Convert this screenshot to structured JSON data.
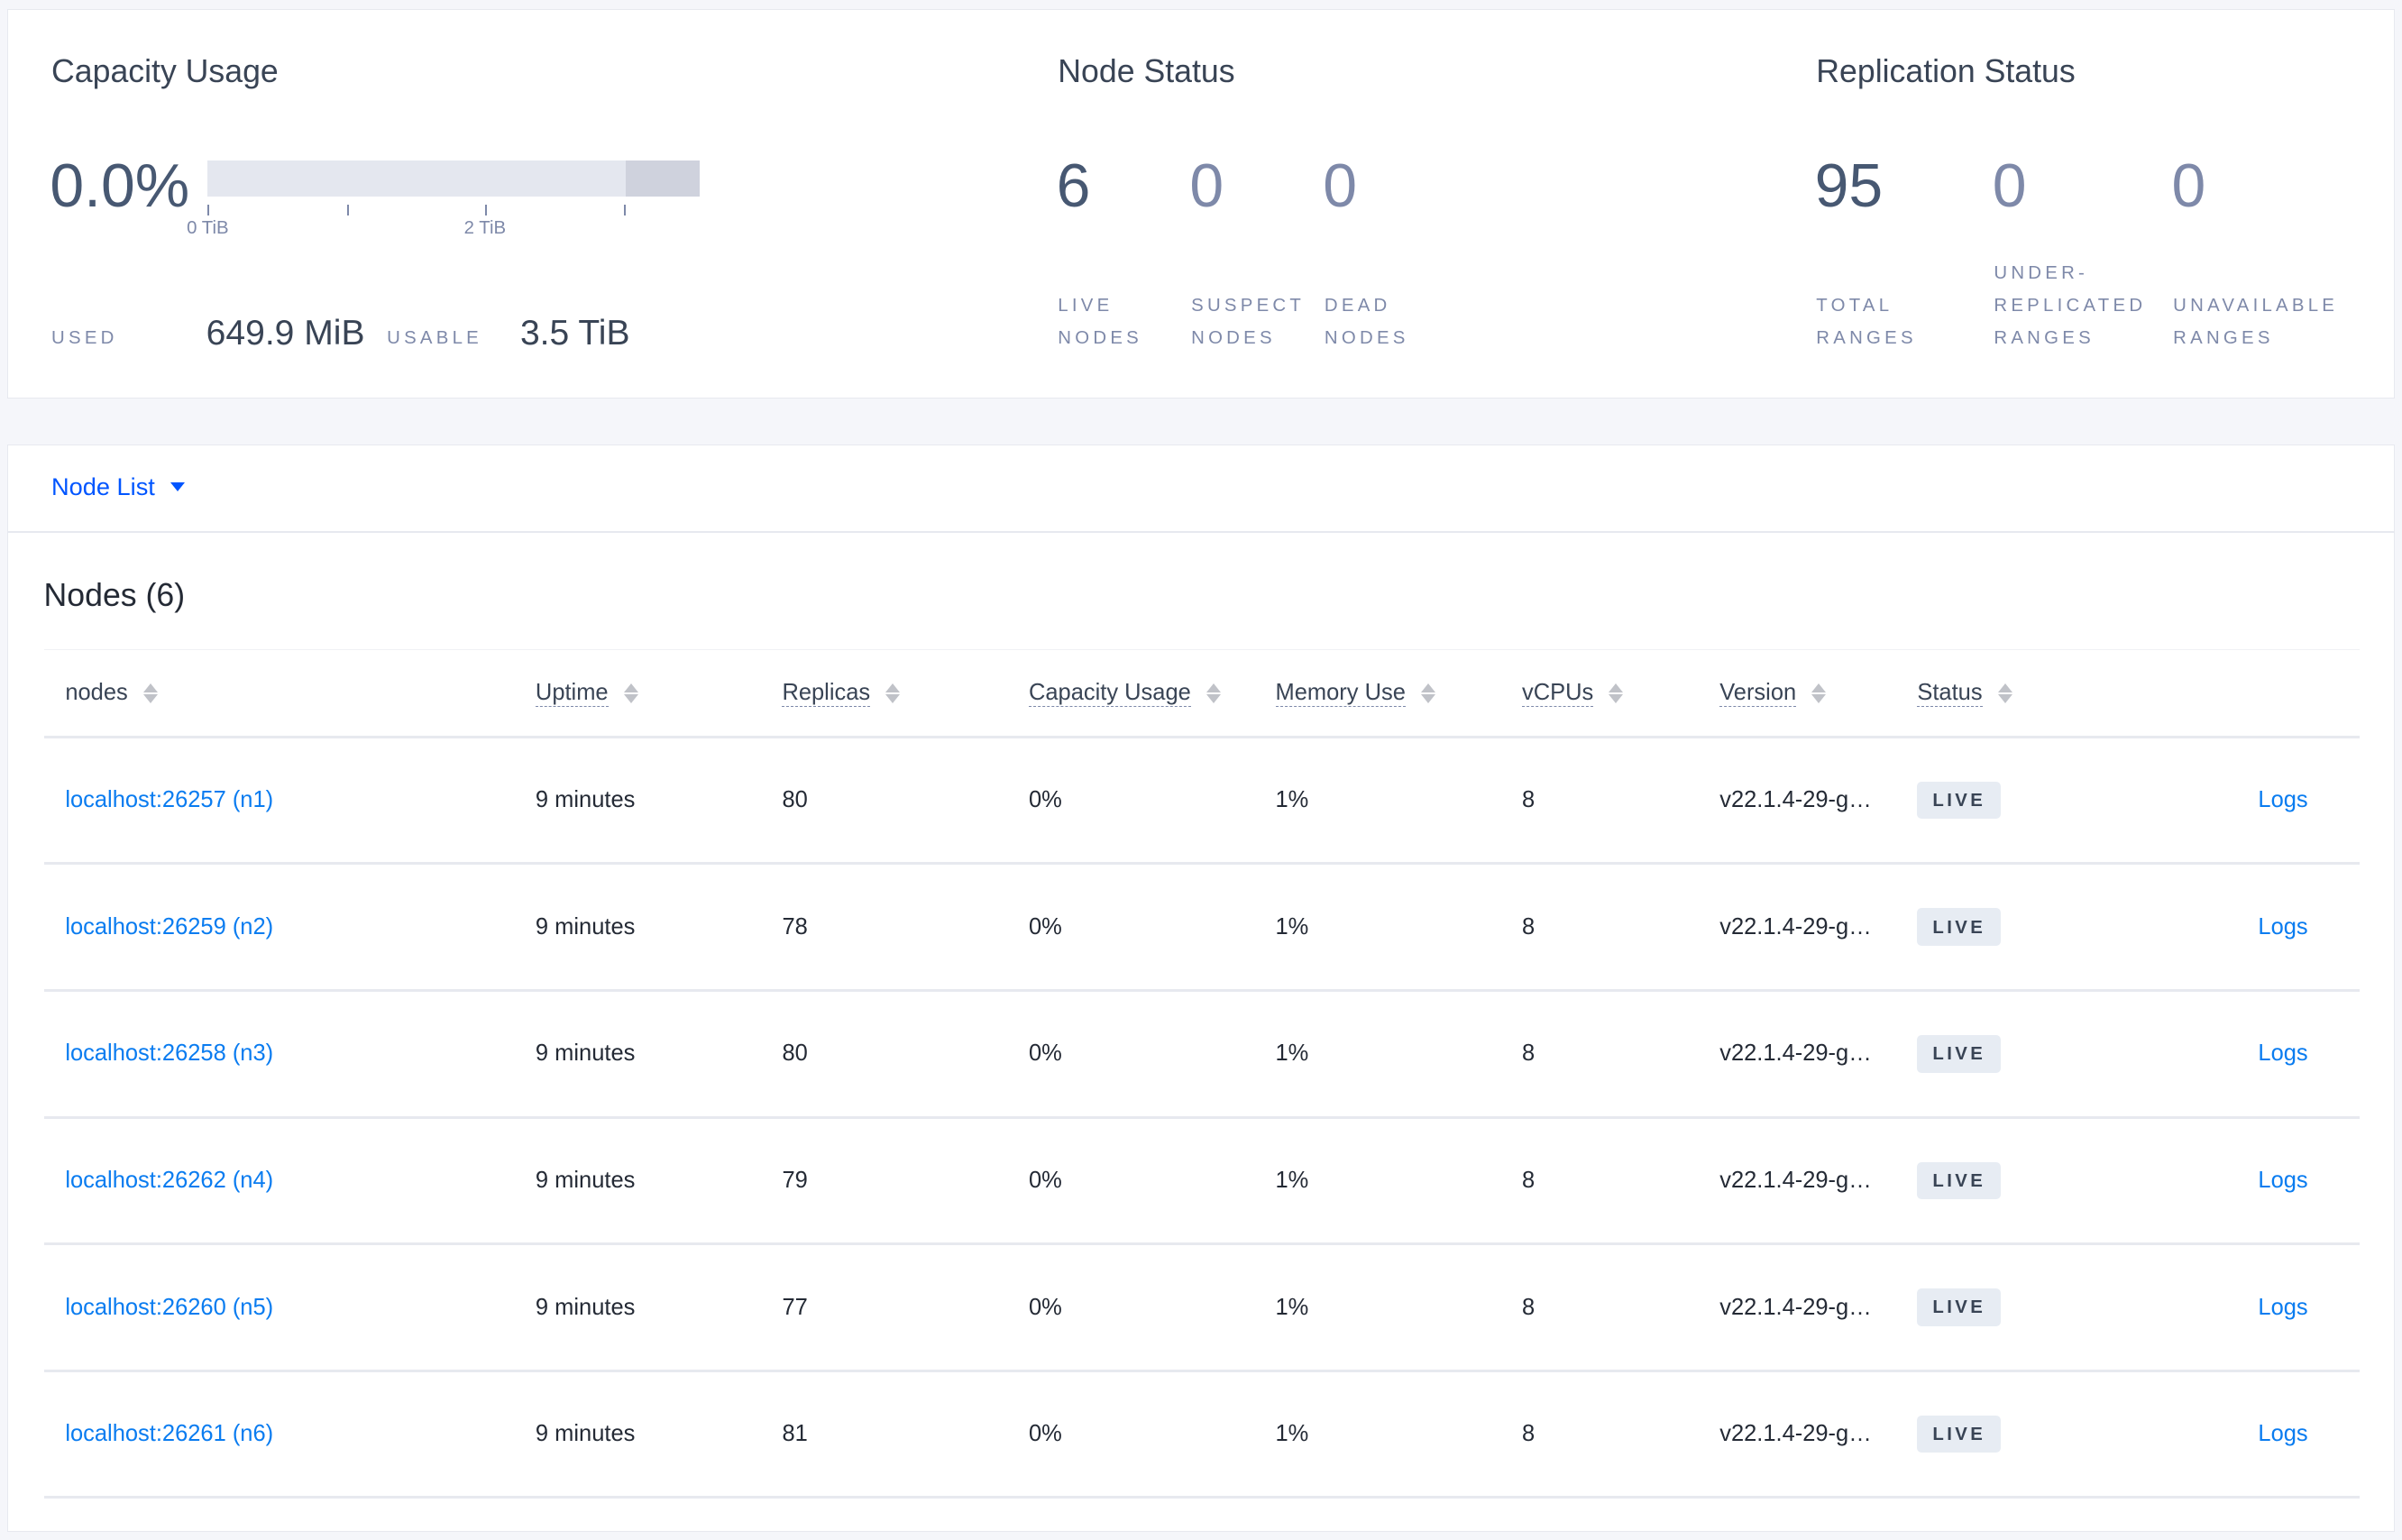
{
  "capacity": {
    "title": "Capacity Usage",
    "percent": "0.0%",
    "used_fraction": 0.0,
    "usable_fraction_of_scale": 0.85,
    "ticks": [
      "0 TiB",
      "2 TiB"
    ],
    "used_label": "Used",
    "used_value": "649.9 MiB",
    "usable_label": "Usable",
    "usable_value": "3.5 TiB"
  },
  "node_status": {
    "title": "Node Status",
    "live": "6",
    "live_label": "Live Nodes",
    "suspect": "0",
    "suspect_label": "Suspect Nodes",
    "dead": "0",
    "dead_label": "Dead Nodes"
  },
  "replication": {
    "title": "Replication Status",
    "total": "95",
    "total_label": "Total Ranges",
    "under": "0",
    "under_label": "Under-replicated Ranges",
    "unavail": "0",
    "unavail_label": "Unavailable Ranges"
  },
  "node_list": {
    "dropdown_label": "Node List",
    "title": "Nodes (6)",
    "columns": [
      "nodes",
      "Uptime",
      "Replicas",
      "Capacity Usage",
      "Memory Use",
      "vCPUs",
      "Version",
      "Status"
    ],
    "rows": [
      {
        "node": "localhost:26257 (n1)",
        "uptime": "9 minutes",
        "replicas": "80",
        "capacity": "0%",
        "memory": "1%",
        "vcpus": "8",
        "version": "v22.1.4-29-g…",
        "status": "LIVE",
        "logs": "Logs"
      },
      {
        "node": "localhost:26259 (n2)",
        "uptime": "9 minutes",
        "replicas": "78",
        "capacity": "0%",
        "memory": "1%",
        "vcpus": "8",
        "version": "v22.1.4-29-g…",
        "status": "LIVE",
        "logs": "Logs"
      },
      {
        "node": "localhost:26258 (n3)",
        "uptime": "9 minutes",
        "replicas": "80",
        "capacity": "0%",
        "memory": "1%",
        "vcpus": "8",
        "version": "v22.1.4-29-g…",
        "status": "LIVE",
        "logs": "Logs"
      },
      {
        "node": "localhost:26262 (n4)",
        "uptime": "9 minutes",
        "replicas": "79",
        "capacity": "0%",
        "memory": "1%",
        "vcpus": "8",
        "version": "v22.1.4-29-g…",
        "status": "LIVE",
        "logs": "Logs"
      },
      {
        "node": "localhost:26260 (n5)",
        "uptime": "9 minutes",
        "replicas": "77",
        "capacity": "0%",
        "memory": "1%",
        "vcpus": "8",
        "version": "v22.1.4-29-g…",
        "status": "LIVE",
        "logs": "Logs"
      },
      {
        "node": "localhost:26261 (n6)",
        "uptime": "9 minutes",
        "replicas": "81",
        "capacity": "0%",
        "memory": "1%",
        "vcpus": "8",
        "version": "v22.1.4-29-g…",
        "status": "LIVE",
        "logs": "Logs"
      }
    ]
  }
}
